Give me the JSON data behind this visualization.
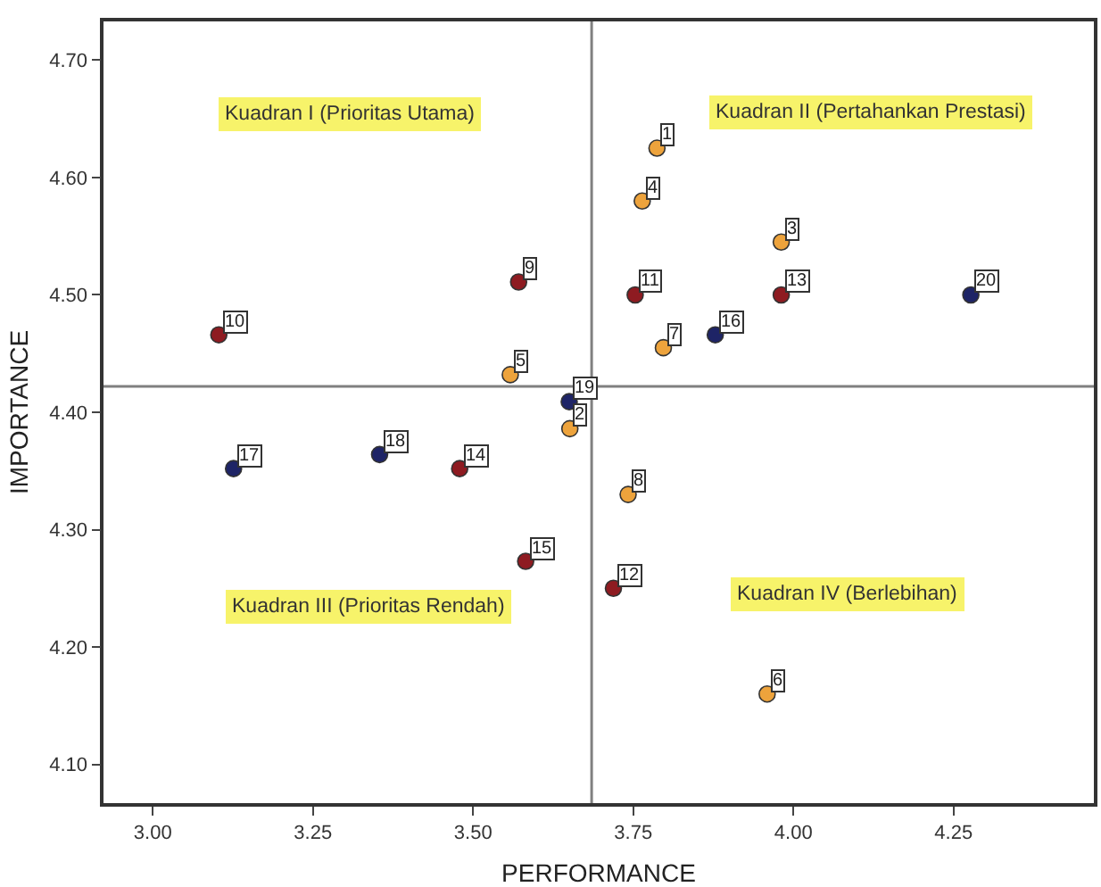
{
  "chart_data": {
    "type": "scatter",
    "xlabel": "PERFORMANCE",
    "ylabel": "IMPORTANCE",
    "x": [
      3.787,
      3.651,
      3.981,
      3.764,
      3.558,
      3.959,
      3.797,
      3.742,
      3.571,
      3.103,
      3.753,
      3.719,
      3.981,
      3.479,
      3.582,
      3.878,
      3.126,
      3.354,
      3.65,
      4.277
    ],
    "values": [
      4.625,
      4.386,
      4.545,
      4.58,
      4.432,
      4.16,
      4.455,
      4.33,
      4.511,
      4.466,
      4.5,
      4.25,
      4.5,
      4.352,
      4.273,
      4.466,
      4.352,
      4.364,
      4.409,
      4.5
    ],
    "colors": [
      "#eda33c",
      "#eda33c",
      "#eda33c",
      "#eda33c",
      "#eda33c",
      "#eda33c",
      "#eda33c",
      "#eda33c",
      "#8e1b21",
      "#8e1b21",
      "#8e1b21",
      "#8e1b21",
      "#8e1b21",
      "#8e1b21",
      "#8e1b21",
      "#1e2466",
      "#1e2466",
      "#1e2466",
      "#1e2466",
      "#1e2466"
    ],
    "marker": "circle",
    "grid": false,
    "xlim": [
      2.923,
      4.469
    ],
    "xticks": [
      {
        "value": 3,
        "label": "3.00"
      },
      {
        "value": 3.25,
        "label": "3.25"
      },
      {
        "value": 3.5,
        "label": "3.50"
      },
      {
        "value": 3.75,
        "label": "3.75"
      },
      {
        "value": 4,
        "label": "4.00"
      },
      {
        "value": 4.25,
        "label": "4.25"
      }
    ],
    "ylim": [
      4.067,
      4.733
    ],
    "yticks": [
      {
        "value": 4.1,
        "label": "4.10"
      },
      {
        "value": 4.2,
        "label": "4.20"
      },
      {
        "value": 4.3,
        "label": "4.30"
      },
      {
        "value": 4.4,
        "label": "4.40"
      },
      {
        "value": 4.5,
        "label": "4.50"
      },
      {
        "value": 4.6,
        "label": "4.60"
      },
      {
        "value": 4.7,
        "label": "4.70"
      }
    ],
    "ref_lines": [
      {
        "axis": "x",
        "value": 3.685,
        "color": "#808080"
      },
      {
        "axis": "y",
        "value": 4.422,
        "color": "#808080"
      }
    ],
    "annotations": [
      "Kuadran I (Prioritas Utama)",
      "Kuadran II (Pertahankan Prestasi)",
      "Kuadran III (Prioritas Rendah)",
      "Kuadran IV (Berlebihan)",
      {
        "text": "1",
        "x": 3.787,
        "y": 4.625
      },
      {
        "text": "2",
        "x": 3.651,
        "y": 4.386
      },
      {
        "text": "3",
        "x": 3.981,
        "y": 4.545
      },
      {
        "text": "4",
        "x": 3.764,
        "y": 4.58
      },
      {
        "text": "5",
        "x": 3.558,
        "y": 4.432
      },
      {
        "text": "6",
        "x": 3.959,
        "y": 4.16
      },
      {
        "text": "7",
        "x": 3.797,
        "y": 4.455
      },
      {
        "text": "8",
        "x": 3.742,
        "y": 4.33
      },
      {
        "text": "9",
        "x": 3.571,
        "y": 4.511
      },
      {
        "text": "10",
        "x": 3.103,
        "y": 4.466
      },
      {
        "text": "11",
        "x": 3.753,
        "y": 4.5
      },
      {
        "text": "12",
        "x": 3.719,
        "y": 4.25
      },
      {
        "text": "13",
        "x": 3.981,
        "y": 4.5
      },
      {
        "text": "14",
        "x": 3.479,
        "y": 4.352
      },
      {
        "text": "15",
        "x": 3.582,
        "y": 4.273
      },
      {
        "text": "16",
        "x": 3.878,
        "y": 4.466
      },
      {
        "text": "17",
        "x": 3.126,
        "y": 4.352
      },
      {
        "text": "18",
        "x": 3.354,
        "y": 4.364
      },
      {
        "text": "19",
        "x": 3.65,
        "y": 4.409
      },
      {
        "text": "20",
        "x": 4.277,
        "y": 4.5
      }
    ]
  }
}
